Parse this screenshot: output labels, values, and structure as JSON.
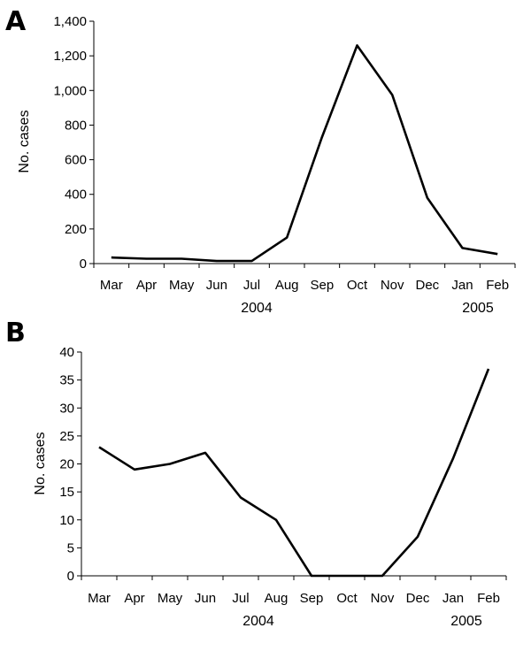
{
  "chart_data": [
    {
      "type": "line",
      "panel_label": "A",
      "categories": [
        "Mar",
        "Apr",
        "May",
        "Jun",
        "Jul",
        "Aug",
        "Sep",
        "Oct",
        "Nov",
        "Dec",
        "Jan",
        "Feb"
      ],
      "series": [
        {
          "values": [
            35,
            28,
            28,
            15,
            15,
            150,
            730,
            1260,
            975,
            380,
            90,
            55
          ]
        }
      ],
      "ylabel": "No. cases",
      "xlabel": "",
      "ylim": [
        0,
        1400
      ],
      "yticks": [
        0,
        200,
        400,
        600,
        800,
        1000,
        1200,
        1400
      ],
      "ytick_labels": [
        "0",
        "200",
        "400",
        "600",
        "800",
        "1,000",
        "1,200",
        "1,400"
      ],
      "year_labels": [
        "2004",
        "2005"
      ],
      "grid": false,
      "legend": "none"
    },
    {
      "type": "line",
      "panel_label": "B",
      "categories": [
        "Mar",
        "Apr",
        "May",
        "Jun",
        "Jul",
        "Aug",
        "Sep",
        "Oct",
        "Nov",
        "Dec",
        "Jan",
        "Feb"
      ],
      "series": [
        {
          "values": [
            23,
            19,
            20,
            22,
            14,
            10,
            0,
            0,
            0,
            7,
            21,
            37
          ]
        }
      ],
      "ylabel": "No. cases",
      "xlabel": "",
      "ylim": [
        0,
        40
      ],
      "yticks": [
        0,
        5,
        10,
        15,
        20,
        25,
        30,
        35,
        40
      ],
      "ytick_labels": [
        "0",
        "5",
        "10",
        "15",
        "20",
        "25",
        "30",
        "35",
        "40"
      ],
      "year_labels": [
        "2004",
        "2005"
      ],
      "grid": false,
      "legend": "none"
    }
  ]
}
